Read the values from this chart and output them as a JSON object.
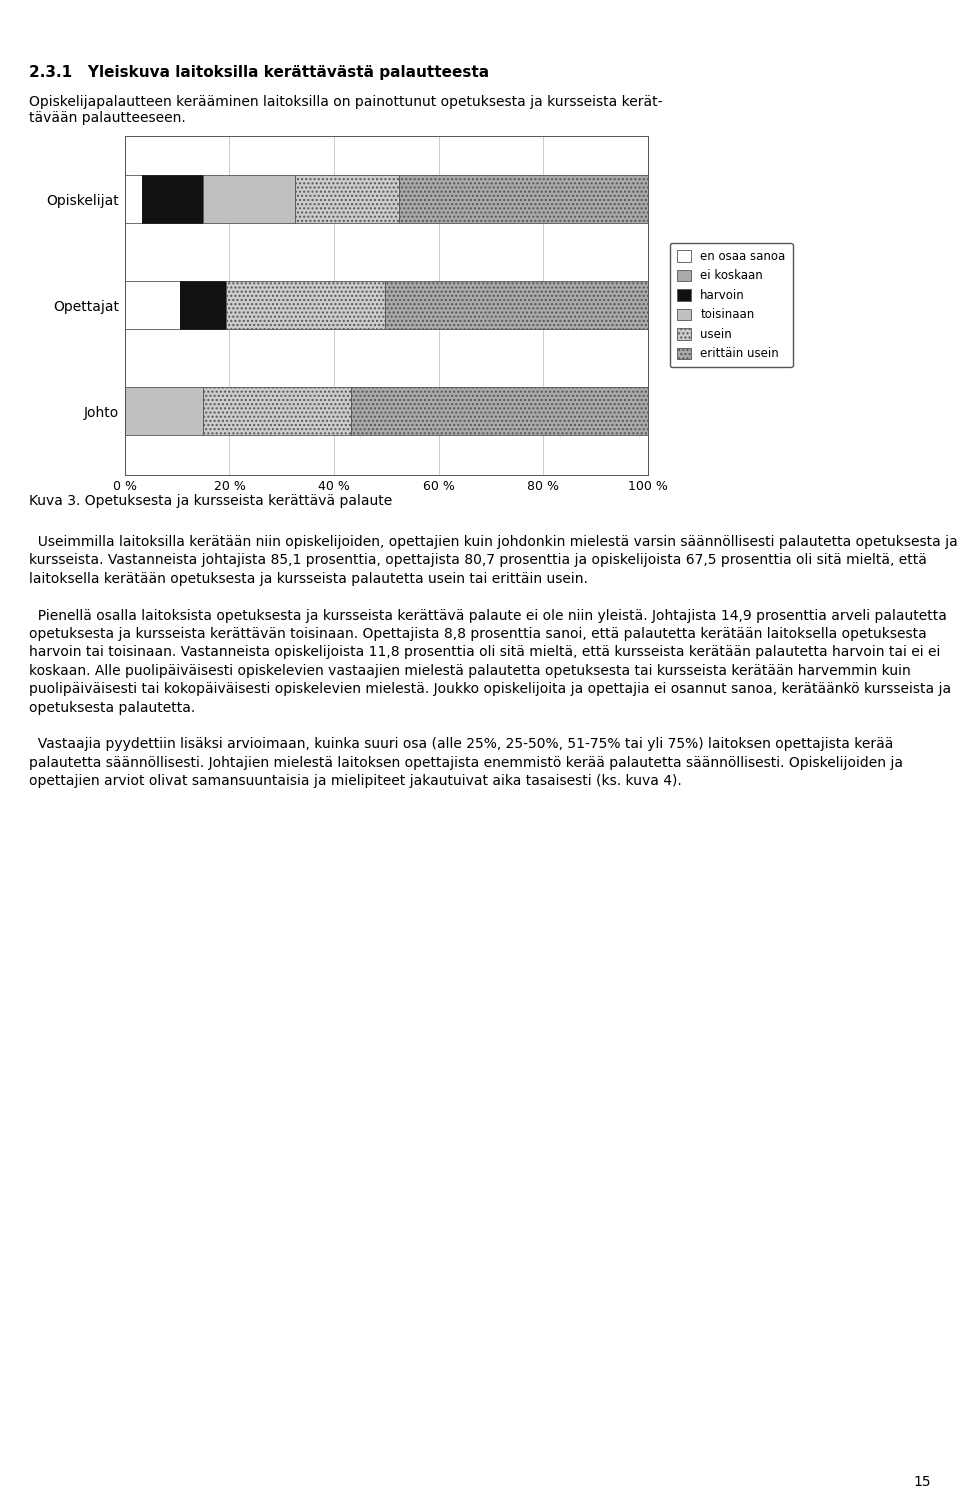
{
  "categories": [
    "Opiskelijat",
    "Opettajat",
    "Johto"
  ],
  "series": [
    {
      "label": "en osaa sanoa",
      "color": "#ffffff",
      "edgecolor": "#555555",
      "hatch": "",
      "values": [
        3.2,
        10.5,
        0.0
      ]
    },
    {
      "label": "ei koskaan",
      "color": "#aaaaaa",
      "edgecolor": "#555555",
      "hatch": "",
      "values": [
        0.0,
        0.0,
        0.0
      ]
    },
    {
      "label": "harvoin",
      "color": "#111111",
      "edgecolor": "#111111",
      "hatch": "",
      "values": [
        11.8,
        8.8,
        0.0
      ]
    },
    {
      "label": "toisinaan",
      "color": "#c0c0c0",
      "edgecolor": "#555555",
      "hatch": "",
      "values": [
        17.5,
        0.0,
        14.9
      ]
    },
    {
      "label": "usein",
      "color": "#cccccc",
      "edgecolor": "#555555",
      "hatch": "....",
      "values": [
        20.0,
        30.5,
        28.4
      ]
    },
    {
      "label": "erittäin usein",
      "color": "#aaaaaa",
      "edgecolor": "#555555",
      "hatch": "....",
      "values": [
        47.5,
        50.2,
        56.7
      ]
    }
  ],
  "xlim": [
    0,
    100
  ],
  "xticks": [
    0,
    20,
    40,
    60,
    80,
    100
  ],
  "xticklabels": [
    "0 %",
    "20 %",
    "40 %",
    "60 %",
    "80 %",
    "100 %"
  ],
  "bar_height": 0.45,
  "legend_labels_colors": [
    {
      "label": "en osaa sanoa",
      "color": "#ffffff",
      "hatch": ""
    },
    {
      "label": "ei koskaan",
      "color": "#aaaaaa",
      "hatch": ""
    },
    {
      "label": "harvoin",
      "color": "#111111",
      "hatch": ""
    },
    {
      "label": "toisinaan",
      "color": "#c0c0c0",
      "hatch": ""
    },
    {
      "label": "usein",
      "color": "#cccccc",
      "hatch": "...."
    },
    {
      "label": "erittäin usein",
      "color": "#aaaaaa",
      "hatch": "...."
    }
  ],
  "title_text": "2.3.1   Yleiskuva laitoksilla kerättävästä palautteesta",
  "subtitle_text": "Opiskelijapalautteen kerääminen laitoksilla on painottunut opetuksesta ja kursseista kerät-\ntävään palautteeseen.",
  "caption_text": "Kuva 3. Opetuksesta ja kursseista kerättävä palaute",
  "body_text": "  Useimmilla laitoksilla kerätään niin opiskelijoiden, opettajien kuin johdonkin mielestä varsin säännöllisesti palautetta opetuksesta ja kursseista. Vastanneista johtajista 85,1 prosenttia, opettajista 80,7 prosenttia ja opiskelijoista 67,5 prosenttia oli sitä mieltä, että laitoksella kerätään opetuksesta ja kursseista palautetta usein tai erittäin usein.\n\n  Pienellä osalla laitoksista opetuksesta ja kursseista kerättävä palaute ei ole niin yleistä. Johtajista 14,9 prosenttia arveli palautetta opetuksesta ja kursseista kerättävän toisinaan. Opettajista 8,8 prosenttia sanoi, että palautetta kerätään laitoksella opetuksesta harvoin tai toisinaan. Vastanneista opiskelijoista 11,8 prosenttia oli sitä mieltä, että kursseista kerätään palautetta harvoin tai ei ei koskaan. Alle puolipäiväisesti opiskelevien vastaajien mielestä palautetta opetuksesta tai kursseista kerätään harvemmin kuin puolipäiväisesti tai kokopäiväisesti opiskelevien mielestä. Joukko opiskelijoita ja opettajia ei osannut sanoa, kerätäänkö kursseista ja opetuksesta palautetta.\n\n  Vastaajia pyydettiin lisäksi arvioimaan, kuinka suuri osa (alle 25%, 25-50%, 51-75% tai yli 75%) laitoksen opettajista kerää palautetta säännöllisesti. Johtajien mielestä laitoksen opettajista enemmistö kerää palautetta säännöllisesti. Opiskelijoiden ja opettajien arviot olivat samansuuntaisia ja mielipiteet jakautuivat aika tasaisesti (ks. kuva 4).",
  "page_number": "15"
}
